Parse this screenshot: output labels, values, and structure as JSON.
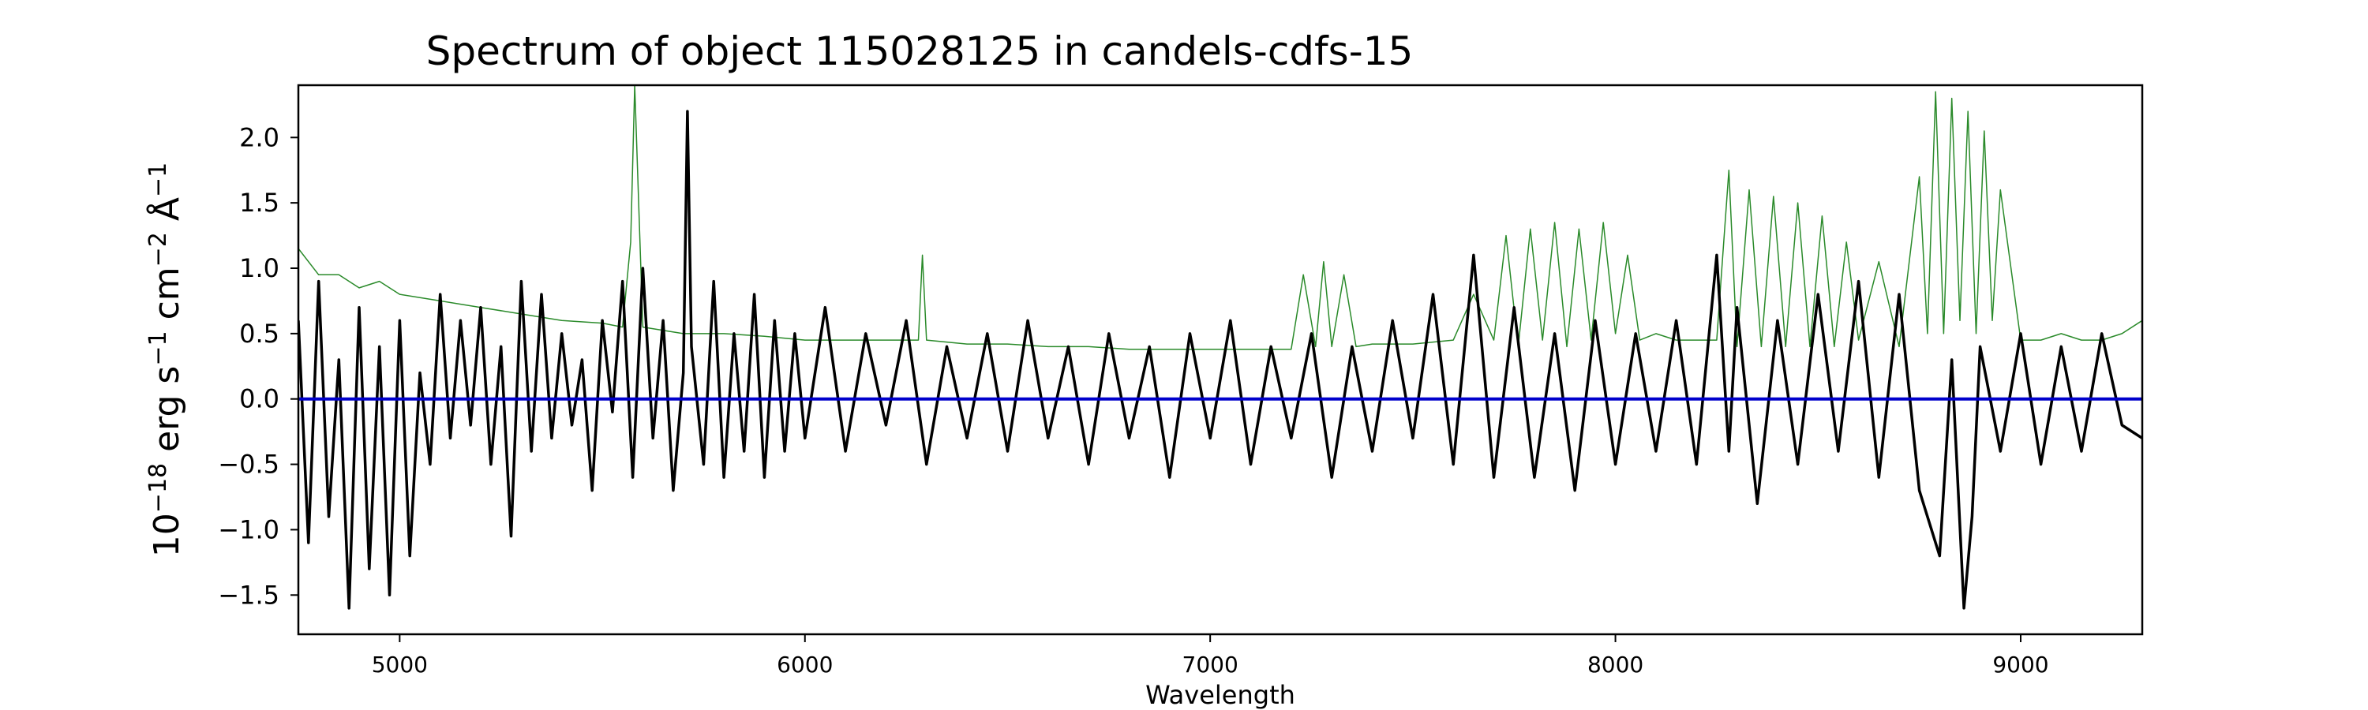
{
  "chart_data": {
    "type": "line",
    "title": "Spectrum of object 115028125 in candels-cdfs-15",
    "xlabel": "Wavelength",
    "ylabel_parts": {
      "p1": "10",
      "p2": "−18",
      "p3": " erg s",
      "p4": "−1",
      "p5": " cm",
      "p6": "−2",
      "p7": " Å",
      "p8": "−1"
    },
    "xlim": [
      4750,
      9300
    ],
    "ylim": [
      -1.8,
      2.4
    ],
    "xticks": [
      5000,
      6000,
      7000,
      8000,
      9000
    ],
    "xtick_labels": [
      "5000",
      "6000",
      "7000",
      "8000",
      "9000"
    ],
    "yticks": [
      -1.5,
      -1.0,
      -0.5,
      0.0,
      0.5,
      1.0,
      1.5,
      2.0
    ],
    "ytick_labels": [
      "−1.5",
      "−1.0",
      "−0.5",
      "0.0",
      "0.5",
      "1.0",
      "1.5",
      "2.0"
    ],
    "grid": false,
    "series": [
      {
        "role": "flux",
        "color": "#000000",
        "x": [
          4750,
          4775,
          4800,
          4825,
          4850,
          4875,
          4900,
          4925,
          4950,
          4975,
          5000,
          5025,
          5050,
          5075,
          5100,
          5125,
          5150,
          5175,
          5200,
          5225,
          5250,
          5275,
          5300,
          5325,
          5350,
          5375,
          5400,
          5425,
          5450,
          5475,
          5500,
          5525,
          5550,
          5575,
          5600,
          5625,
          5650,
          5675,
          5700,
          5710,
          5720,
          5750,
          5775,
          5800,
          5825,
          5850,
          5875,
          5900,
          5925,
          5950,
          5975,
          6000,
          6050,
          6100,
          6150,
          6200,
          6250,
          6300,
          6350,
          6400,
          6450,
          6500,
          6550,
          6600,
          6650,
          6700,
          6750,
          6800,
          6850,
          6900,
          6950,
          7000,
          7050,
          7100,
          7150,
          7200,
          7250,
          7300,
          7350,
          7400,
          7450,
          7500,
          7550,
          7600,
          7650,
          7700,
          7750,
          7800,
          7850,
          7900,
          7950,
          8000,
          8050,
          8100,
          8150,
          8200,
          8250,
          8280,
          8300,
          8350,
          8400,
          8450,
          8500,
          8550,
          8600,
          8650,
          8700,
          8750,
          8800,
          8830,
          8860,
          8880,
          8900,
          8950,
          9000,
          9050,
          9100,
          9150,
          9200,
          9250,
          9300
        ],
        "y": [
          0.6,
          -1.1,
          0.9,
          -0.9,
          0.3,
          -1.6,
          0.7,
          -1.3,
          0.4,
          -1.5,
          0.6,
          -1.2,
          0.2,
          -0.5,
          0.8,
          -0.3,
          0.6,
          -0.2,
          0.7,
          -0.5,
          0.4,
          -1.05,
          0.9,
          -0.4,
          0.8,
          -0.3,
          0.5,
          -0.2,
          0.3,
          -0.7,
          0.6,
          -0.1,
          0.9,
          -0.6,
          1.0,
          -0.3,
          0.6,
          -0.7,
          0.2,
          2.2,
          0.4,
          -0.5,
          0.9,
          -0.6,
          0.5,
          -0.4,
          0.8,
          -0.6,
          0.6,
          -0.4,
          0.5,
          -0.3,
          0.7,
          -0.4,
          0.5,
          -0.2,
          0.6,
          -0.5,
          0.4,
          -0.3,
          0.5,
          -0.4,
          0.6,
          -0.3,
          0.4,
          -0.5,
          0.5,
          -0.3,
          0.4,
          -0.6,
          0.5,
          -0.3,
          0.6,
          -0.5,
          0.4,
          -0.3,
          0.5,
          -0.6,
          0.4,
          -0.4,
          0.6,
          -0.3,
          0.8,
          -0.5,
          1.1,
          -0.6,
          0.7,
          -0.6,
          0.5,
          -0.7,
          0.6,
          -0.5,
          0.5,
          -0.4,
          0.6,
          -0.5,
          1.1,
          -0.4,
          0.7,
          -0.8,
          0.6,
          -0.5,
          0.8,
          -0.4,
          0.9,
          -0.6,
          0.8,
          -0.7,
          -1.2,
          0.3,
          -1.6,
          -0.9,
          0.4,
          -0.4,
          0.5,
          -0.5,
          0.4,
          -0.4,
          0.5,
          -0.2,
          -0.3
        ],
        "width": 3.5
      },
      {
        "role": "error",
        "color": "#2a8a2a",
        "x": [
          4750,
          4800,
          4850,
          4900,
          4950,
          5000,
          5100,
          5200,
          5300,
          5400,
          5500,
          5550,
          5570,
          5580,
          5600,
          5700,
          5800,
          5900,
          6000,
          6100,
          6200,
          6280,
          6290,
          6300,
          6400,
          6500,
          6600,
          6700,
          6800,
          6900,
          7000,
          7100,
          7200,
          7230,
          7260,
          7280,
          7300,
          7330,
          7360,
          7400,
          7500,
          7600,
          7650,
          7700,
          7730,
          7760,
          7790,
          7820,
          7850,
          7880,
          7910,
          7940,
          7970,
          8000,
          8030,
          8060,
          8100,
          8150,
          8200,
          8250,
          8280,
          8300,
          8330,
          8360,
          8390,
          8420,
          8450,
          8480,
          8510,
          8540,
          8570,
          8600,
          8650,
          8700,
          8750,
          8770,
          8790,
          8810,
          8830,
          8850,
          8870,
          8890,
          8910,
          8930,
          8950,
          9000,
          9050,
          9100,
          9150,
          9200,
          9250,
          9300
        ],
        "y": [
          1.15,
          0.95,
          0.95,
          0.85,
          0.9,
          0.8,
          0.75,
          0.7,
          0.65,
          0.6,
          0.58,
          0.55,
          1.2,
          2.4,
          0.55,
          0.5,
          0.5,
          0.48,
          0.45,
          0.45,
          0.45,
          0.45,
          1.1,
          0.45,
          0.42,
          0.42,
          0.4,
          0.4,
          0.38,
          0.38,
          0.38,
          0.38,
          0.38,
          0.95,
          0.4,
          1.05,
          0.4,
          0.95,
          0.4,
          0.42,
          0.42,
          0.45,
          0.8,
          0.45,
          1.25,
          0.4,
          1.3,
          0.45,
          1.35,
          0.4,
          1.3,
          0.45,
          1.35,
          0.5,
          1.1,
          0.45,
          0.5,
          0.45,
          0.45,
          0.45,
          1.75,
          0.4,
          1.6,
          0.4,
          1.55,
          0.4,
          1.5,
          0.4,
          1.4,
          0.4,
          1.2,
          0.45,
          1.05,
          0.4,
          1.7,
          0.5,
          2.35,
          0.5,
          2.3,
          0.6,
          2.2,
          0.5,
          2.05,
          0.6,
          1.6,
          0.45,
          0.45,
          0.5,
          0.45,
          0.45,
          0.5,
          0.6
        ],
        "width": 1.5
      },
      {
        "role": "zero",
        "color": "#0000cc",
        "x": [
          4750,
          9300
        ],
        "y": [
          0.0,
          0.0
        ],
        "width": 4
      }
    ]
  }
}
